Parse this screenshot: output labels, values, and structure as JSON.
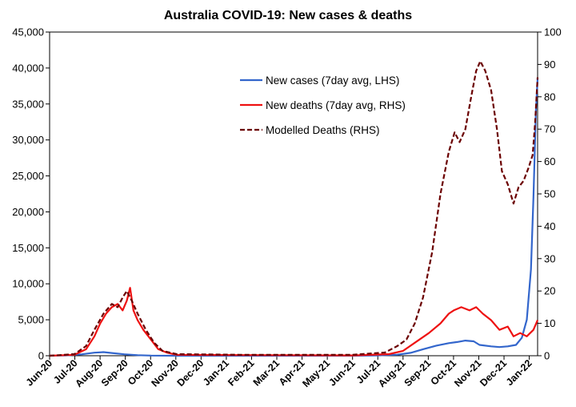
{
  "chart_data": {
    "type": "line",
    "title": "Australia COVID-19: New cases & deaths",
    "x_labels": [
      "Jun-20",
      "Jul-20",
      "Aug-20",
      "Sep-20",
      "Oct-20",
      "Nov-20",
      "Dec-20",
      "Jan-21",
      "Feb-21",
      "Mar-21",
      "Apr-21",
      "May-21",
      "Jun-21",
      "Jul-21",
      "Aug-21",
      "Sep-21",
      "Oct-21",
      "Nov-21",
      "Dec-21",
      "Jan-22"
    ],
    "x_range": [
      "2020-06-01",
      "2022-01-10"
    ],
    "y_left": {
      "min": 0,
      "max": 45000,
      "ticks": [
        "0",
        "5,000",
        "10,000",
        "15,000",
        "20,000",
        "25,000",
        "30,000",
        "35,000",
        "40,000",
        "45,000"
      ],
      "values": [
        0,
        5000,
        10000,
        15000,
        20000,
        25000,
        30000,
        35000,
        40000,
        45000
      ]
    },
    "y_right": {
      "min": 0,
      "max": 100,
      "ticks": [
        "0",
        "10",
        "20",
        "30",
        "40",
        "50",
        "60",
        "70",
        "80",
        "90",
        "100"
      ],
      "values": [
        0,
        10,
        20,
        30,
        40,
        50,
        60,
        70,
        80,
        90,
        100
      ]
    },
    "legend_position": "top-right",
    "series": [
      {
        "name": "New cases (7day avg, LHS)",
        "axis": "left",
        "color": "#3366cc",
        "style": "solid",
        "points": [
          [
            "2020-06-01",
            10
          ],
          [
            "2020-06-20",
            30
          ],
          [
            "2020-07-10",
            200
          ],
          [
            "2020-07-25",
            420
          ],
          [
            "2020-08-05",
            500
          ],
          [
            "2020-08-15",
            380
          ],
          [
            "2020-08-30",
            200
          ],
          [
            "2020-09-15",
            80
          ],
          [
            "2020-10-01",
            20
          ],
          [
            "2020-11-01",
            5
          ],
          [
            "2021-06-01",
            5
          ],
          [
            "2021-07-01",
            30
          ],
          [
            "2021-07-25",
            150
          ],
          [
            "2021-08-10",
            400
          ],
          [
            "2021-08-25",
            900
          ],
          [
            "2021-09-10",
            1400
          ],
          [
            "2021-09-25",
            1750
          ],
          [
            "2021-10-05",
            1900
          ],
          [
            "2021-10-15",
            2100
          ],
          [
            "2021-10-25",
            2000
          ],
          [
            "2021-11-01",
            1500
          ],
          [
            "2021-11-15",
            1300
          ],
          [
            "2021-11-25",
            1200
          ],
          [
            "2021-12-05",
            1300
          ],
          [
            "2021-12-15",
            1500
          ],
          [
            "2021-12-22",
            2500
          ],
          [
            "2021-12-28",
            5000
          ],
          [
            "2022-01-02",
            12000
          ],
          [
            "2022-01-05",
            22000
          ],
          [
            "2022-01-08",
            34000
          ],
          [
            "2022-01-10",
            38500
          ]
        ]
      },
      {
        "name": "New deaths (7day avg, RHS)",
        "axis": "right",
        "color": "#ee1111",
        "style": "solid",
        "points": [
          [
            "2020-06-01",
            0
          ],
          [
            "2020-07-01",
            0.3
          ],
          [
            "2020-07-15",
            2
          ],
          [
            "2020-07-25",
            6
          ],
          [
            "2020-08-01",
            10
          ],
          [
            "2020-08-08",
            13
          ],
          [
            "2020-08-15",
            15
          ],
          [
            "2020-08-22",
            16
          ],
          [
            "2020-08-28",
            14
          ],
          [
            "2020-09-02",
            17
          ],
          [
            "2020-09-06",
            21
          ],
          [
            "2020-09-10",
            14
          ],
          [
            "2020-09-15",
            11
          ],
          [
            "2020-09-22",
            8
          ],
          [
            "2020-10-01",
            5
          ],
          [
            "2020-10-10",
            2
          ],
          [
            "2020-10-20",
            1
          ],
          [
            "2020-11-01",
            0.3
          ],
          [
            "2021-01-15",
            0.2
          ],
          [
            "2021-06-01",
            0.1
          ],
          [
            "2021-07-15",
            0.5
          ],
          [
            "2021-08-01",
            1.5
          ],
          [
            "2021-08-15",
            4
          ],
          [
            "2021-09-01",
            7
          ],
          [
            "2021-09-15",
            10
          ],
          [
            "2021-09-25",
            13
          ],
          [
            "2021-10-01",
            14
          ],
          [
            "2021-10-10",
            15
          ],
          [
            "2021-10-20",
            14
          ],
          [
            "2021-10-28",
            15
          ],
          [
            "2021-11-05",
            13
          ],
          [
            "2021-11-15",
            11
          ],
          [
            "2021-11-25",
            8
          ],
          [
            "2021-12-05",
            9
          ],
          [
            "2021-12-12",
            6
          ],
          [
            "2021-12-20",
            7
          ],
          [
            "2021-12-28",
            6
          ],
          [
            "2022-01-05",
            8
          ],
          [
            "2022-01-10",
            11
          ]
        ]
      },
      {
        "name": "Modelled Deaths (RHS)",
        "axis": "right",
        "color": "#6b0000",
        "style": "dashed",
        "points": [
          [
            "2020-06-01",
            0
          ],
          [
            "2020-07-01",
            0.5
          ],
          [
            "2020-07-15",
            3
          ],
          [
            "2020-07-25",
            8
          ],
          [
            "2020-08-05",
            13
          ],
          [
            "2020-08-15",
            16
          ],
          [
            "2020-08-22",
            15
          ],
          [
            "2020-08-28",
            18
          ],
          [
            "2020-09-02",
            20
          ],
          [
            "2020-09-08",
            17
          ],
          [
            "2020-09-15",
            13
          ],
          [
            "2020-09-25",
            8
          ],
          [
            "2020-10-05",
            4
          ],
          [
            "2020-10-15",
            1.5
          ],
          [
            "2020-11-01",
            0.5
          ],
          [
            "2021-01-15",
            0.3
          ],
          [
            "2021-06-01",
            0.3
          ],
          [
            "2021-07-10",
            1
          ],
          [
            "2021-07-25",
            3
          ],
          [
            "2021-08-05",
            5
          ],
          [
            "2021-08-15",
            10
          ],
          [
            "2021-08-25",
            18
          ],
          [
            "2021-09-05",
            32
          ],
          [
            "2021-09-15",
            50
          ],
          [
            "2021-09-25",
            63
          ],
          [
            "2021-10-02",
            69
          ],
          [
            "2021-10-08",
            66
          ],
          [
            "2021-10-15",
            70
          ],
          [
            "2021-10-22",
            80
          ],
          [
            "2021-10-28",
            88
          ],
          [
            "2021-11-02",
            91
          ],
          [
            "2021-11-08",
            88
          ],
          [
            "2021-11-15",
            82
          ],
          [
            "2021-11-22",
            70
          ],
          [
            "2021-11-28",
            57
          ],
          [
            "2021-12-05",
            53
          ],
          [
            "2021-12-12",
            47
          ],
          [
            "2021-12-18",
            52
          ],
          [
            "2021-12-24",
            54
          ],
          [
            "2021-12-30",
            58
          ],
          [
            "2022-01-04",
            62
          ],
          [
            "2022-01-07",
            72
          ],
          [
            "2022-01-10",
            86
          ]
        ]
      }
    ]
  }
}
